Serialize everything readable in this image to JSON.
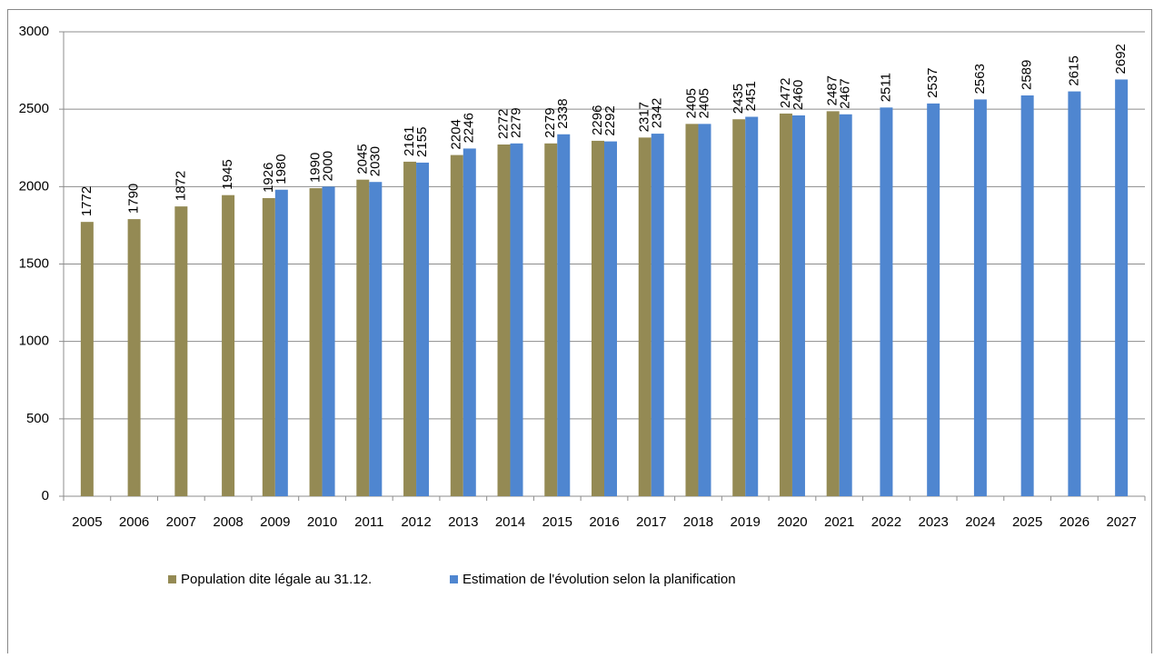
{
  "chart_data": {
    "type": "bar",
    "categories": [
      "2005",
      "2006",
      "2007",
      "2008",
      "2009",
      "2010",
      "2011",
      "2012",
      "2013",
      "2014",
      "2015",
      "2016",
      "2017",
      "2018",
      "2019",
      "2020",
      "2021",
      "2022",
      "2023",
      "2024",
      "2025",
      "2026",
      "2027"
    ],
    "series": [
      {
        "name": "Population dite légale au 31.12.",
        "color": "#948a54",
        "values": [
          1772,
          1790,
          1872,
          1945,
          1926,
          1990,
          2045,
          2161,
          2204,
          2272,
          2279,
          2296,
          2317,
          2405,
          2435,
          2472,
          2487,
          null,
          null,
          null,
          null,
          null,
          null
        ]
      },
      {
        "name": "Estimation de l'évolution selon la planification",
        "color": "#4f86d0",
        "values": [
          null,
          null,
          null,
          null,
          1980,
          2000,
          2030,
          2155,
          2246,
          2279,
          2338,
          2292,
          2342,
          2405,
          2451,
          2460,
          2467,
          2511,
          2537,
          2563,
          2589,
          2615,
          2692
        ]
      }
    ],
    "ylim": [
      0,
      3000
    ],
    "yticks": [
      0,
      500,
      1000,
      1500,
      2000,
      2500,
      3000
    ],
    "grid": true,
    "legend": "bottom"
  }
}
